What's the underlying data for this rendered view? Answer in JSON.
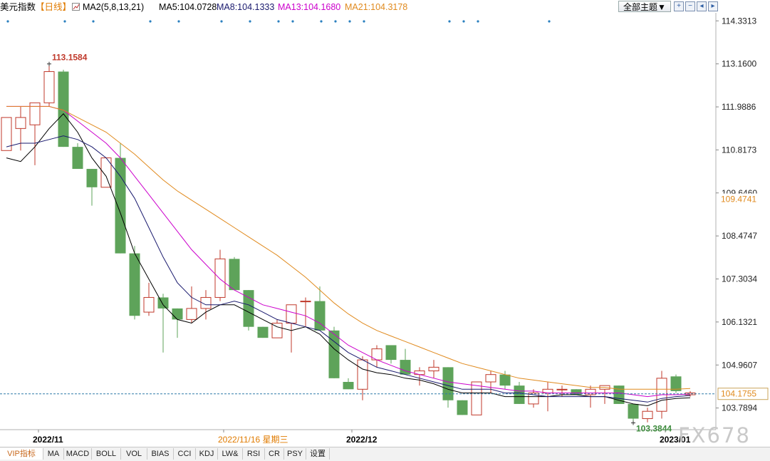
{
  "header": {
    "title": "美元指数",
    "period": "【日线】",
    "ma_settings": "MA2(5,8,13,21)",
    "ma5": "MA5:104.0728",
    "ma8": "MA8:104.1333",
    "ma13": "MA13:104.1680",
    "ma21": "MA21:104.3178",
    "theme": "全部主题▼",
    "colors": {
      "ma5": "#000000",
      "ma8": "#1a1a6e",
      "ma13": "#cc00cc",
      "ma21": "#e08a1e",
      "title": "#000000",
      "period": "#e07b00"
    }
  },
  "toolbar": {
    "icons": [
      "zoom-in-icon",
      "zoom-out-icon",
      "step-back-icon",
      "step-forward-icon"
    ]
  },
  "tabs": [
    "VIP指标",
    "MA",
    "MACD",
    "BOLL",
    "VOL",
    "BIAS",
    "CCI",
    "KDJ",
    "LW&",
    "RSI",
    "CR",
    "PSY",
    "设置"
  ],
  "watermark": "FX678",
  "chart_data": {
    "type": "candlestick",
    "y_axis": {
      "ticks": [
        "114.3313",
        "113.1600",
        "111.9886",
        "110.8173",
        "109.6460",
        "108.4747",
        "107.3034",
        "106.1321",
        "104.9607",
        "103.7894"
      ],
      "range": [
        103.2,
        114.55
      ],
      "highlight_labels": [
        {
          "value": 109.4741,
          "text": "109.4741",
          "color": "#e08a1e"
        },
        {
          "value": 104.1755,
          "text": "104.1755",
          "color": "#e08a1e"
        }
      ]
    },
    "x_axis": {
      "labels": [
        {
          "index": 2,
          "text": "2022/11",
          "color": "#000000"
        },
        {
          "index": 15,
          "text": "2022/11/16 星期三",
          "color": "#e07b00"
        },
        {
          "index": 24,
          "text": "2022/12",
          "color": "#000000"
        },
        {
          "index": 46,
          "text": "2023/01",
          "color": "#000000"
        }
      ]
    },
    "price_annotations": [
      {
        "index": 3,
        "value": 113.1584,
        "text": "113.1584",
        "color": "#c0392b",
        "position": "above"
      },
      {
        "index": 44,
        "value": 103.3844,
        "text": "103.3844",
        "color": "#3d8b3d",
        "position": "below"
      }
    ],
    "current_price_line": 104.1755,
    "candles": [
      {
        "o": 110.8,
        "h": 111.6,
        "l": 110.8,
        "c": 111.7
      },
      {
        "o": 111.4,
        "h": 112.0,
        "l": 110.8,
        "c": 111.7
      },
      {
        "o": 111.5,
        "h": 112.1,
        "l": 110.4,
        "c": 112.1
      },
      {
        "o": 112.1,
        "h": 113.2,
        "l": 112.0,
        "c": 112.95
      },
      {
        "o": 112.95,
        "h": 113.0,
        "l": 110.9,
        "c": 110.9
      },
      {
        "o": 110.9,
        "h": 111.0,
        "l": 110.3,
        "c": 110.3
      },
      {
        "o": 110.3,
        "h": 110.3,
        "l": 109.3,
        "c": 109.8
      },
      {
        "o": 109.8,
        "h": 110.6,
        "l": 109.8,
        "c": 110.6
      },
      {
        "o": 110.6,
        "h": 111.0,
        "l": 108.0,
        "c": 108.0
      },
      {
        "o": 108.0,
        "h": 108.2,
        "l": 106.2,
        "c": 106.3
      },
      {
        "o": 106.4,
        "h": 107.2,
        "l": 106.3,
        "c": 106.8
      },
      {
        "o": 106.8,
        "h": 106.9,
        "l": 105.3,
        "c": 106.5
      },
      {
        "o": 106.5,
        "h": 106.5,
        "l": 105.7,
        "c": 106.2
      },
      {
        "o": 106.2,
        "h": 107.1,
        "l": 106.1,
        "c": 106.5
      },
      {
        "o": 106.5,
        "h": 107.0,
        "l": 106.2,
        "c": 106.8
      },
      {
        "o": 106.8,
        "h": 108.1,
        "l": 106.7,
        "c": 107.85
      },
      {
        "o": 107.85,
        "h": 107.9,
        "l": 107.0,
        "c": 107.0
      },
      {
        "o": 107.0,
        "h": 107.0,
        "l": 105.9,
        "c": 106.0
      },
      {
        "o": 106.0,
        "h": 106.0,
        "l": 105.7,
        "c": 105.7
      },
      {
        "o": 105.7,
        "h": 106.2,
        "l": 105.7,
        "c": 106.1
      },
      {
        "o": 106.1,
        "h": 106.6,
        "l": 105.3,
        "c": 106.6
      },
      {
        "o": 106.7,
        "h": 106.8,
        "l": 106.0,
        "c": 106.7
      },
      {
        "o": 106.7,
        "h": 107.1,
        "l": 105.9,
        "c": 105.9
      },
      {
        "o": 105.9,
        "h": 106.0,
        "l": 104.6,
        "c": 104.6
      },
      {
        "o": 104.5,
        "h": 104.6,
        "l": 104.3,
        "c": 104.3
      },
      {
        "o": 104.3,
        "h": 105.2,
        "l": 104.0,
        "c": 105.1
      },
      {
        "o": 105.1,
        "h": 105.5,
        "l": 104.9,
        "c": 105.4
      },
      {
        "o": 105.5,
        "h": 105.5,
        "l": 105.0,
        "c": 105.1
      },
      {
        "o": 105.1,
        "h": 105.4,
        "l": 104.7,
        "c": 104.7
      },
      {
        "o": 104.7,
        "h": 104.9,
        "l": 104.4,
        "c": 104.8
      },
      {
        "o": 104.8,
        "h": 105.1,
        "l": 104.6,
        "c": 104.9
      },
      {
        "o": 104.9,
        "h": 104.9,
        "l": 103.8,
        "c": 104.0
      },
      {
        "o": 104.0,
        "h": 104.0,
        "l": 103.6,
        "c": 103.6
      },
      {
        "o": 103.6,
        "h": 104.5,
        "l": 103.6,
        "c": 104.5
      },
      {
        "o": 104.5,
        "h": 104.8,
        "l": 104.2,
        "c": 104.7
      },
      {
        "o": 104.7,
        "h": 104.8,
        "l": 104.3,
        "c": 104.4
      },
      {
        "o": 104.4,
        "h": 104.5,
        "l": 103.9,
        "c": 103.9
      },
      {
        "o": 103.9,
        "h": 104.3,
        "l": 103.8,
        "c": 104.2
      },
      {
        "o": 104.2,
        "h": 104.5,
        "l": 103.7,
        "c": 104.3
      },
      {
        "o": 104.3,
        "h": 104.4,
        "l": 104.1,
        "c": 104.3
      },
      {
        "o": 104.3,
        "h": 104.3,
        "l": 104.15,
        "c": 104.15
      },
      {
        "o": 104.15,
        "h": 104.4,
        "l": 103.8,
        "c": 104.3
      },
      {
        "o": 104.3,
        "h": 104.4,
        "l": 103.9,
        "c": 104.4
      },
      {
        "o": 104.4,
        "h": 104.4,
        "l": 103.9,
        "c": 103.9
      },
      {
        "o": 103.9,
        "h": 103.9,
        "l": 103.38,
        "c": 103.5
      },
      {
        "o": 103.5,
        "h": 103.8,
        "l": 103.4,
        "c": 103.7
      },
      {
        "o": 103.7,
        "h": 104.8,
        "l": 103.5,
        "c": 104.6
      },
      {
        "o": 104.65,
        "h": 104.7,
        "l": 104.2,
        "c": 104.25
      },
      {
        "o": 104.15,
        "h": 104.25,
        "l": 104.1,
        "c": 104.2
      }
    ],
    "series": [
      {
        "name": "MA5",
        "color": "#000000",
        "values": [
          110.6,
          110.5,
          110.9,
          111.4,
          111.8,
          111.3,
          110.6,
          110.1,
          109.1,
          108.0,
          107.3,
          106.6,
          106.2,
          106.1,
          106.4,
          106.6,
          106.6,
          106.4,
          106.2,
          106.0,
          105.9,
          106.0,
          105.8,
          105.4,
          105.1,
          104.85,
          104.75,
          104.7,
          104.6,
          104.55,
          104.45,
          104.3,
          104.2,
          104.2,
          104.2,
          104.1,
          104.1,
          104.1,
          104.1,
          104.15,
          104.15,
          104.1,
          104.1,
          104.0,
          103.9,
          103.85,
          104.0,
          104.05,
          104.07
        ]
      },
      {
        "name": "MA8",
        "color": "#1a1a6e",
        "values": [
          110.9,
          111.0,
          111.0,
          111.1,
          111.2,
          111.1,
          110.9,
          110.6,
          110.1,
          109.5,
          108.7,
          107.9,
          107.2,
          106.8,
          106.6,
          106.6,
          106.7,
          106.6,
          106.4,
          106.2,
          106.1,
          106.0,
          105.9,
          105.6,
          105.3,
          105.1,
          104.9,
          104.8,
          104.7,
          104.6,
          104.5,
          104.4,
          104.3,
          104.3,
          104.3,
          104.2,
          104.2,
          104.15,
          104.1,
          104.1,
          104.1,
          104.1,
          104.1,
          104.05,
          104.0,
          103.95,
          104.05,
          104.1,
          104.13
        ]
      },
      {
        "name": "MA13",
        "color": "#cc00cc",
        "values": [
          112.0,
          112.0,
          112.0,
          112.0,
          111.9,
          111.6,
          111.3,
          111.0,
          110.6,
          110.1,
          109.6,
          109.1,
          108.6,
          108.1,
          107.7,
          107.3,
          107.0,
          106.8,
          106.6,
          106.5,
          106.4,
          106.3,
          106.1,
          105.8,
          105.5,
          105.3,
          105.1,
          104.95,
          104.8,
          104.7,
          104.6,
          104.5,
          104.45,
          104.4,
          104.35,
          104.3,
          104.25,
          104.25,
          104.2,
          104.2,
          104.2,
          104.2,
          104.2,
          104.2,
          104.15,
          104.1,
          104.15,
          104.15,
          104.17
        ]
      },
      {
        "name": "MA21",
        "color": "#e08a1e",
        "values": [
          112.0,
          112.0,
          112.0,
          112.0,
          111.9,
          111.7,
          111.5,
          111.3,
          111.0,
          110.7,
          110.35,
          110.0,
          109.7,
          109.45,
          109.2,
          108.95,
          108.7,
          108.45,
          108.2,
          107.95,
          107.65,
          107.35,
          107.0,
          106.65,
          106.35,
          106.1,
          105.9,
          105.75,
          105.6,
          105.45,
          105.3,
          105.15,
          105.0,
          104.9,
          104.8,
          104.7,
          104.6,
          104.55,
          104.5,
          104.45,
          104.4,
          104.35,
          104.35,
          104.3,
          104.3,
          104.3,
          104.3,
          104.3,
          104.32
        ]
      }
    ],
    "event_markers": [
      0,
      4,
      6,
      10,
      12,
      15,
      17,
      19,
      20,
      22,
      23,
      24,
      25,
      31,
      32,
      33,
      38
    ],
    "colors": {
      "up": "#c0392b",
      "down": "#5ea35a",
      "grid": "#e0e0e0",
      "axis_text": "#222222",
      "price_line": "#2e7aa8"
    }
  }
}
